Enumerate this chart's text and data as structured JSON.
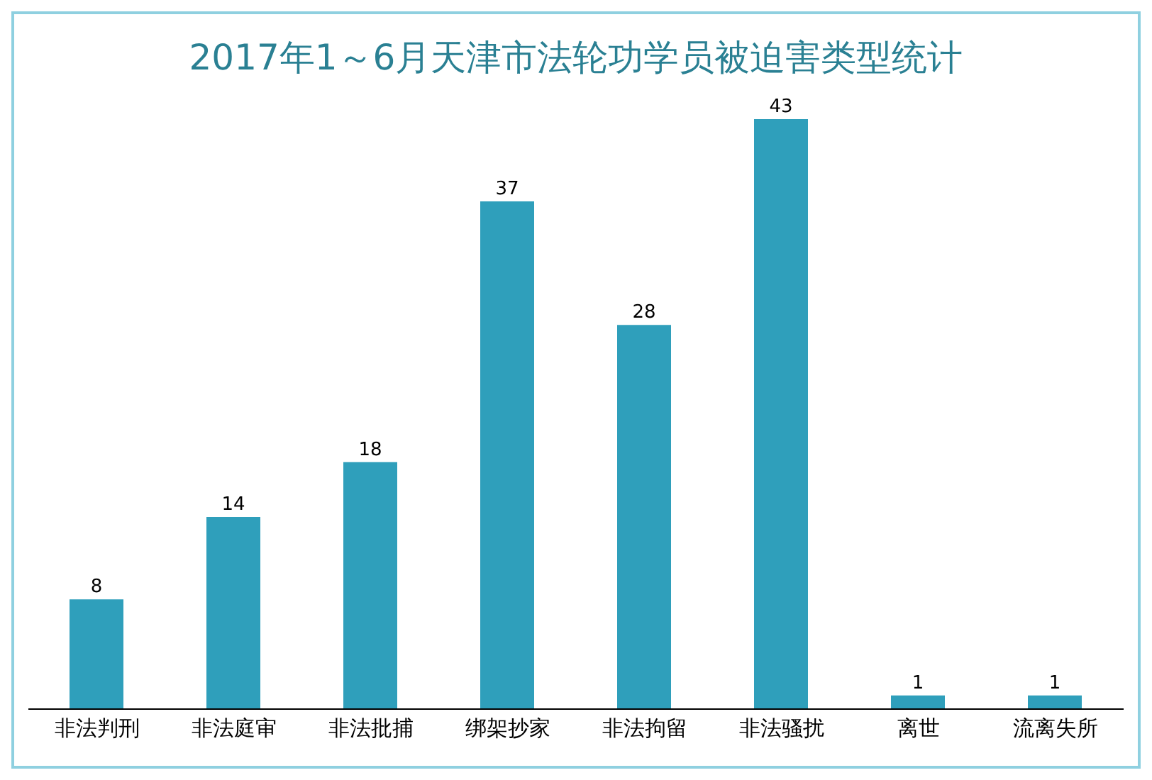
{
  "chart_data": {
    "type": "bar",
    "title": "2017年1～6月天津市法轮功学员被迫害类型统计",
    "categories": [
      "非法判刑",
      "非法庭审",
      "非法批捕",
      "绑架抄家",
      "非法拘留",
      "非法骚扰",
      "离世",
      "流离失所"
    ],
    "values": [
      8,
      14,
      18,
      37,
      28,
      43,
      1,
      1
    ],
    "color": "#2f9fbb",
    "data_labels": true,
    "tick_labels": "x"
  }
}
